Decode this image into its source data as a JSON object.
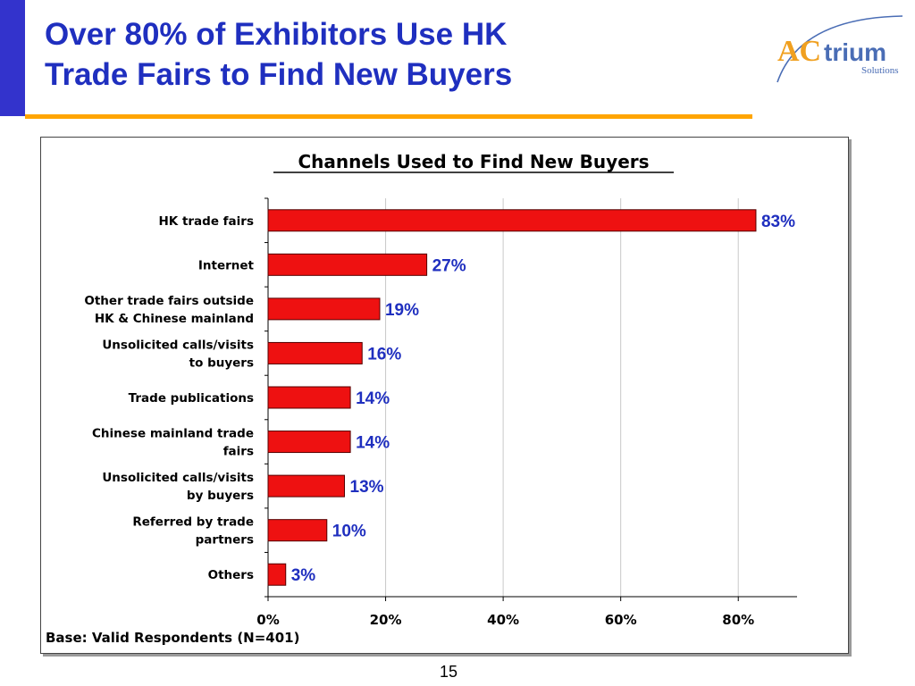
{
  "slide": {
    "title_line1": "Over 80% of Exhibitors Use HK",
    "title_line2": "Trade Fairs to Find New Buyers",
    "page_number": "15",
    "logo_text_ac": "AC",
    "logo_text_trium": "trium",
    "logo_subtext": "Solutions",
    "colors": {
      "title": "#1f2fbf",
      "left_bar": "#3333cc",
      "rule": "#ffa500",
      "bar_fill": "#ee1111",
      "data_label": "#1f2fbf"
    }
  },
  "chart_data": {
    "type": "bar",
    "orientation": "horizontal",
    "title": "Channels Used to Find New Buyers",
    "categories": [
      [
        "HK trade fairs"
      ],
      [
        "Internet"
      ],
      [
        "Other trade fairs outside",
        "HK & Chinese mainland"
      ],
      [
        "Unsolicited calls/visits",
        "to buyers"
      ],
      [
        "Trade publications"
      ],
      [
        "Chinese mainland trade",
        "fairs"
      ],
      [
        "Unsolicited calls/visits",
        "by buyers"
      ],
      [
        "Referred by trade",
        "partners"
      ],
      [
        "Others"
      ]
    ],
    "values": [
      83,
      27,
      19,
      16,
      14,
      14,
      13,
      10,
      3
    ],
    "value_labels": [
      "83%",
      "27%",
      "19%",
      "16%",
      "14%",
      "14%",
      "13%",
      "10%",
      "3%"
    ],
    "xlim": [
      0,
      90
    ],
    "xticks": [
      0,
      20,
      40,
      60,
      80
    ],
    "xtick_labels": [
      "0%",
      "20%",
      "40%",
      "60%",
      "80%"
    ],
    "grid": "vertical",
    "footnote": "Base: Valid Respondents (N=401)"
  }
}
